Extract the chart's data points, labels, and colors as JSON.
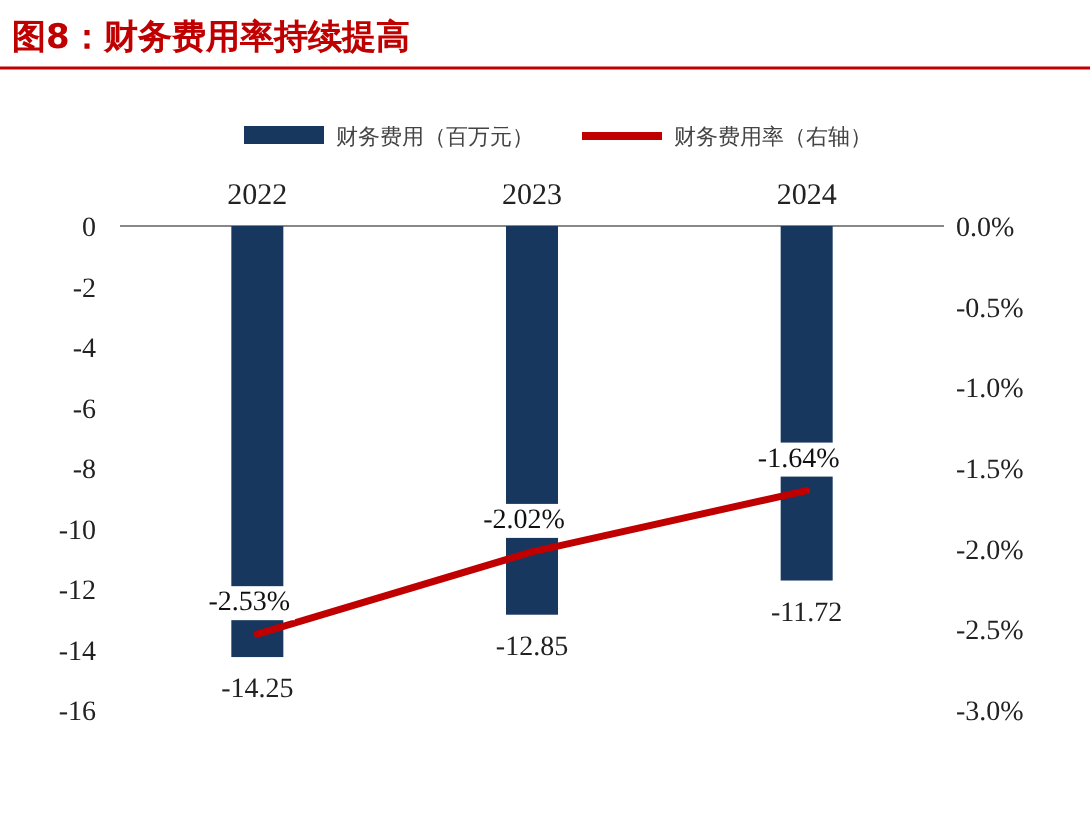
{
  "chart_data": {
    "type": "bar",
    "title": "图8：财务费用率持续提高",
    "categories": [
      "2022",
      "2023",
      "2024"
    ],
    "series": [
      {
        "name": "财务费用（百万元）",
        "color": "#17375e",
        "values": [
          -14.25,
          -12.85,
          -11.72
        ],
        "value_labels": [
          "-14.25",
          "-12.85",
          "-11.72"
        ]
      },
      {
        "name": "财务费用率（右轴）",
        "type": "line",
        "axis": "y2",
        "color": "#c00000",
        "values": [
          -2.53,
          -2.02,
          -1.64
        ],
        "value_labels": [
          "-2.53%",
          "-2.02%",
          "-1.64%"
        ]
      }
    ],
    "ylim": [
      -16,
      0
    ],
    "yticks": [
      {
        "value": 0,
        "label": "0"
      },
      {
        "value": -2,
        "label": "-2"
      },
      {
        "value": -4,
        "label": "-4"
      },
      {
        "value": -6,
        "label": "-6"
      },
      {
        "value": -8,
        "label": "-8"
      },
      {
        "value": -10,
        "label": "-10"
      },
      {
        "value": -12,
        "label": "-12"
      },
      {
        "value": -14,
        "label": "-14"
      },
      {
        "value": -16,
        "label": "-16"
      }
    ],
    "y2lim": [
      -3,
      0
    ],
    "y2ticks": [
      {
        "value": 0,
        "label": "0.0%"
      },
      {
        "value": -0.5,
        "label": "-0.5%"
      },
      {
        "value": -1,
        "label": "-1.0%"
      },
      {
        "value": -1.5,
        "label": "-1.5%"
      },
      {
        "value": -2,
        "label": "-2.0%"
      },
      {
        "value": -2.5,
        "label": "-2.5%"
      },
      {
        "value": -3,
        "label": "-3.0%"
      }
    ],
    "legend": "top",
    "grid": false,
    "marker": "none"
  }
}
